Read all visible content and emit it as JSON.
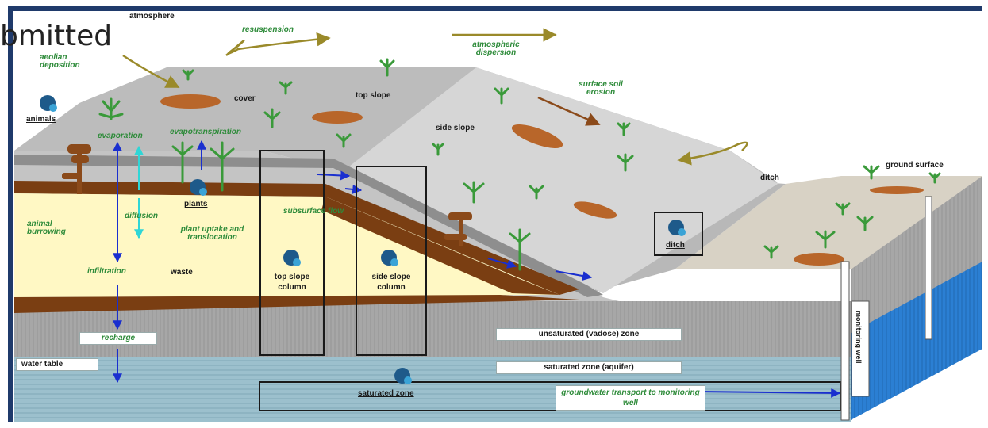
{
  "overlay_text": "bmitted",
  "labels": {
    "atmosphere": "atmosphere",
    "resuspension": "resuspension",
    "atmospheric_dispersion": "atmospheric dispersion",
    "aeolian_deposition": "aeolian deposition",
    "animals": "animals",
    "cover": "cover",
    "top_slope": "top slope",
    "side_slope": "side slope",
    "surface_soil_erosion": "surface soil erosion",
    "evaporation": "evaporation",
    "evapotranspiration": "evapotranspiration",
    "plants": "plants",
    "ditch_label": "ditch",
    "ditch_box": "ditch",
    "ground_surface": "ground surface",
    "animal_burrowing": "animal burrowing",
    "diffusion": "diffusion",
    "plant_uptake": "plant uptake and translocation",
    "subsurface_flow": "subsurface flow",
    "infiltration": "infiltration",
    "waste": "waste",
    "top_slope_column": "top slope column",
    "side_slope_column": "side slope column",
    "recharge": "recharge",
    "water_table": "water table",
    "unsaturated_zone": "unsaturated (vadose) zone",
    "saturated_zone_aquifer": "saturated zone (aquifer)",
    "saturated_zone": "saturated zone",
    "groundwater_transport": "groundwater transport to monitoring well",
    "monitoring_well": "monitoring well"
  },
  "colors": {
    "frame": "#1f3a6b",
    "cover": "#bdbdbd",
    "waste": "#fff8c4",
    "liner": "#7a3e12",
    "aquifer": "#8fb8c6",
    "vadose": "#a3a3a3",
    "well_water": "#2b7fd3",
    "plant": "#3a9a3a",
    "flow_arrow": "#1a2fcf"
  }
}
